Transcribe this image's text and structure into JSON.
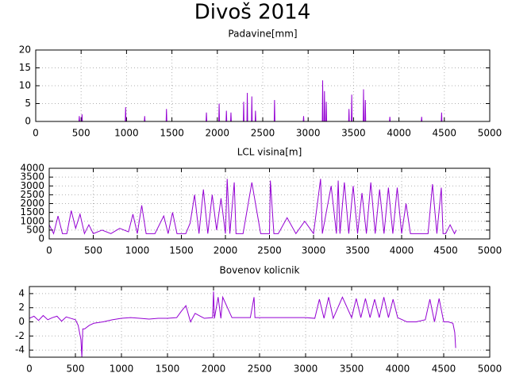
{
  "title": "Divoš 2014",
  "chart_data": [
    {
      "type": "line",
      "title": "Padavine[mm]",
      "color": "#9400d3",
      "grid": true,
      "xlim": [
        0,
        5000
      ],
      "xticks": [
        0,
        500,
        1000,
        1500,
        2000,
        2500,
        3000,
        3500,
        4000,
        4500,
        5000
      ],
      "ylim": [
        0,
        20
      ],
      "yticks": [
        0,
        5,
        10,
        15,
        20
      ],
      "x": [
        0,
        476,
        480,
        484,
        506,
        510,
        514,
        986,
        990,
        994,
        1196,
        1200,
        1204,
        1436,
        1440,
        1444,
        1876,
        1880,
        1884,
        2016,
        2020,
        2024,
        2096,
        2100,
        2104,
        2146,
        2150,
        2154,
        2286,
        2290,
        2294,
        2326,
        2330,
        2334,
        2376,
        2380,
        2384,
        2416,
        2420,
        2424,
        2626,
        2630,
        2634,
        2946,
        2950,
        2954,
        3156,
        3160,
        3164,
        3176,
        3180,
        3184,
        3196,
        3200,
        3204,
        3446,
        3450,
        3454,
        3476,
        3480,
        3484,
        3606,
        3610,
        3614,
        3626,
        3630,
        3634,
        3896,
        3900,
        3904,
        4246,
        4250,
        4254,
        4466,
        4470,
        4474,
        4620
      ],
      "values": [
        0,
        0,
        1.5,
        0,
        0,
        2,
        0,
        0,
        4,
        0,
        0,
        1.5,
        0,
        0,
        3.5,
        0,
        0,
        2.5,
        0,
        0,
        5,
        0,
        0,
        3,
        0,
        0,
        2.5,
        0,
        0,
        5.5,
        0,
        0,
        8,
        0,
        0,
        7,
        0,
        0,
        3,
        0,
        0,
        6,
        0,
        0,
        1.5,
        0,
        0,
        11.5,
        0,
        0,
        8.5,
        0,
        0,
        5.5,
        0,
        0,
        3.5,
        0,
        0,
        7.5,
        0,
        0,
        9,
        0,
        0,
        6,
        0,
        0,
        1.3,
        0,
        0,
        1.3,
        0,
        0,
        2.5,
        0,
        0
      ]
    },
    {
      "type": "line",
      "title": "LCL visina[m]",
      "color": "#9400d3",
      "grid": true,
      "xlim": [
        0,
        5000
      ],
      "xticks": [
        0,
        500,
        1000,
        1500,
        2000,
        2500,
        3000,
        3500,
        4000,
        4500,
        5000
      ],
      "ylim": [
        0,
        4000
      ],
      "yticks": [
        0,
        500,
        1000,
        1500,
        2000,
        2500,
        3000,
        3500,
        4000
      ],
      "x": [
        0,
        50,
        100,
        150,
        200,
        250,
        300,
        350,
        400,
        450,
        500,
        600,
        700,
        800,
        900,
        950,
        1000,
        1050,
        1100,
        1200,
        1300,
        1350,
        1400,
        1450,
        1500,
        1550,
        1600,
        1650,
        1700,
        1750,
        1800,
        1850,
        1900,
        1950,
        2000,
        2020,
        2050,
        2100,
        2120,
        2200,
        2300,
        2400,
        2500,
        2510,
        2550,
        2600,
        2700,
        2800,
        2900,
        3000,
        3080,
        3100,
        3200,
        3260,
        3280,
        3300,
        3350,
        3400,
        3450,
        3500,
        3550,
        3600,
        3650,
        3700,
        3750,
        3800,
        3850,
        3900,
        3950,
        4000,
        4050,
        4100,
        4200,
        4300,
        4350,
        4400,
        4450,
        4470,
        4500,
        4550,
        4600,
        4620
      ],
      "values": [
        800,
        300,
        1300,
        300,
        300,
        1600,
        600,
        1400,
        300,
        800,
        300,
        500,
        300,
        600,
        400,
        1400,
        300,
        1900,
        300,
        300,
        1300,
        300,
        1500,
        300,
        300,
        300,
        900,
        2500,
        300,
        2800,
        300,
        2500,
        500,
        2300,
        300,
        3400,
        300,
        3200,
        300,
        300,
        3200,
        300,
        300,
        3300,
        300,
        300,
        1200,
        300,
        1000,
        300,
        3400,
        300,
        3000,
        300,
        3300,
        300,
        3200,
        300,
        3000,
        300,
        2600,
        300,
        3200,
        300,
        2800,
        300,
        2900,
        300,
        2900,
        300,
        2000,
        300,
        300,
        300,
        3100,
        300,
        2900,
        300,
        300,
        800,
        300,
        500
      ]
    },
    {
      "type": "line",
      "title": "Bovenov kolicnik",
      "color": "#9400d3",
      "grid": true,
      "xlim": [
        0,
        5000
      ],
      "xticks": [
        0,
        500,
        1000,
        1500,
        2000,
        2500,
        3000,
        3500,
        4000,
        4500,
        5000
      ],
      "ylim": [
        -5,
        5
      ],
      "yticks": [
        -4,
        -2,
        0,
        2,
        4
      ],
      "x": [
        0,
        50,
        100,
        150,
        200,
        250,
        300,
        350,
        400,
        450,
        500,
        530,
        560,
        570,
        580,
        600,
        650,
        700,
        800,
        900,
        1000,
        1100,
        1200,
        1300,
        1400,
        1500,
        1600,
        1650,
        1700,
        1750,
        1800,
        1900,
        1990,
        2000,
        2010,
        2050,
        2080,
        2100,
        2200,
        2300,
        2400,
        2440,
        2450,
        2500,
        2600,
        2700,
        2800,
        2900,
        3000,
        3100,
        3150,
        3200,
        3250,
        3300,
        3400,
        3500,
        3550,
        3600,
        3650,
        3700,
        3750,
        3800,
        3850,
        3900,
        3950,
        4000,
        4100,
        4200,
        4300,
        4350,
        4400,
        4450,
        4500,
        4550,
        4600,
        4620,
        4630
      ],
      "values": [
        0.5,
        0.8,
        0.2,
        0.9,
        0.3,
        0.6,
        0.8,
        0.1,
        0.7,
        0.5,
        0.3,
        -0.5,
        -2.5,
        -5,
        -1,
        -1,
        -0.5,
        -0.2,
        0,
        0.3,
        0.5,
        0.6,
        0.5,
        0.4,
        0.5,
        0.5,
        0.6,
        1.5,
        2.3,
        0,
        1.2,
        0.5,
        0.6,
        4.3,
        0.5,
        3.5,
        0.5,
        3.5,
        0.6,
        0.6,
        0.6,
        3.5,
        0.6,
        0.6,
        0.6,
        0.6,
        0.6,
        0.6,
        0.6,
        0.5,
        3.2,
        0.5,
        3.5,
        0.5,
        3.5,
        0.6,
        3.3,
        0.6,
        3.3,
        0.6,
        3.2,
        0.6,
        3.5,
        0.6,
        3.2,
        0.6,
        0,
        0,
        0.3,
        3.2,
        0,
        3.3,
        0,
        0,
        -0.2,
        -1.5,
        -3.7
      ]
    }
  ]
}
